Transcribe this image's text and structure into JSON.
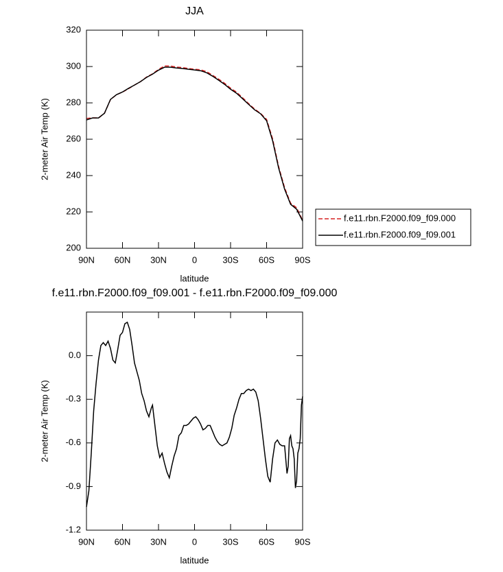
{
  "chart_data": [
    {
      "type": "line",
      "title": "JJA",
      "xlabel": "latitude",
      "ylabel": "2-meter Air Temp (K)",
      "x": [
        90,
        85,
        80,
        75,
        70,
        65,
        60,
        55,
        50,
        45,
        40,
        35,
        30,
        25,
        20,
        15,
        10,
        5,
        0,
        -5,
        -10,
        -15,
        -20,
        -25,
        -30,
        -35,
        -40,
        -45,
        -50,
        -55,
        -60,
        -65,
        -70,
        -75,
        -80,
        -85,
        -90
      ],
      "series": [
        {
          "name": "f.e11.rbn.F2000.f09_f09.000",
          "color": "#d62020",
          "style": "dashed",
          "values": [
            271.4,
            271.8,
            271.7,
            274.3,
            281.8,
            284.5,
            285.9,
            287.8,
            289.8,
            291.7,
            294.2,
            296,
            298.4,
            300.3,
            300.3,
            299.7,
            299.4,
            298.9,
            298.5,
            298.2,
            297.2,
            295.2,
            293.1,
            290.8,
            288.1,
            285.9,
            282.8,
            279.6,
            276.6,
            274.2,
            270.9,
            260.2,
            245,
            233.3,
            224.8,
            222.3,
            215.3
          ]
        },
        {
          "name": "f.e11.rbn.F2000.f09_f09.001",
          "color": "#000000",
          "style": "solid",
          "values": [
            270.6,
            271.7,
            271.7,
            274.3,
            281.9,
            284.5,
            286,
            288,
            289.8,
            291.7,
            294,
            295.8,
            298,
            299.6,
            299.6,
            299.2,
            298.9,
            298.5,
            298.1,
            297.7,
            296.6,
            294.7,
            292.5,
            290.2,
            287.5,
            285.3,
            282.3,
            279.2,
            276.2,
            274,
            270.2,
            259.2,
            244.2,
            232.5,
            224.2,
            221.5,
            215
          ]
        }
      ],
      "xlim": [
        90,
        -90
      ],
      "xticks": [
        {
          "value": 90,
          "label": "90N"
        },
        {
          "value": 60,
          "label": "60N"
        },
        {
          "value": 30,
          "label": "30N"
        },
        0,
        {
          "value": -30,
          "label": "30S"
        },
        {
          "value": -60,
          "label": "60S"
        },
        {
          "value": -90,
          "label": "90S"
        }
      ],
      "ylim": [
        200,
        320
      ],
      "yticks": [
        200,
        220,
        240,
        260,
        280,
        300,
        320
      ],
      "legend": "right"
    },
    {
      "type": "line",
      "title": "f.e11.rbn.F2000.f09_f09.001 - f.e11.rbn.F2000.f09_f09.000",
      "xlabel": "latitude",
      "ylabel": "2-meter Air Temp (K)",
      "x": [
        90,
        88,
        86,
        84,
        82,
        80,
        78,
        76,
        74,
        72,
        70,
        68,
        66,
        64,
        62,
        60,
        58,
        56,
        54,
        52,
        50,
        48,
        46,
        44,
        42,
        40,
        38,
        36,
        35,
        33,
        31,
        29,
        27,
        25,
        23,
        21,
        19,
        17,
        15,
        13,
        11,
        9,
        7,
        5,
        3,
        1,
        -1,
        -3,
        -5,
        -7,
        -9,
        -11,
        -13,
        -15,
        -17,
        -19,
        -21,
        -23,
        -25,
        -27,
        -29,
        -31,
        -33,
        -35,
        -37,
        -39,
        -41,
        -43,
        -45,
        -47,
        -49,
        -51,
        -53,
        -55,
        -57,
        -59,
        -61,
        -63,
        -65,
        -67,
        -69,
        -71,
        -73,
        -75,
        -77,
        -78,
        -79,
        -80,
        -81,
        -82,
        -83,
        -84,
        -85,
        -86,
        -87,
        -88,
        -89,
        -90
      ],
      "series": [
        {
          "color": "#000000",
          "style": "solid",
          "values": [
            -1.04,
            -0.93,
            -0.67,
            -0.38,
            -0.19,
            -0.03,
            0.07,
            0.09,
            0.07,
            0.1,
            0.05,
            -0.03,
            -0.05,
            0.04,
            0.14,
            0.16,
            0.22,
            0.23,
            0.18,
            0.07,
            -0.05,
            -0.11,
            -0.17,
            -0.26,
            -0.31,
            -0.38,
            -0.42,
            -0.36,
            -0.34,
            -0.48,
            -0.62,
            -0.7,
            -0.67,
            -0.74,
            -0.8,
            -0.84,
            -0.76,
            -0.69,
            -0.64,
            -0.55,
            -0.53,
            -0.48,
            -0.48,
            -0.47,
            -0.45,
            -0.43,
            -0.42,
            -0.44,
            -0.47,
            -0.51,
            -0.5,
            -0.48,
            -0.48,
            -0.52,
            -0.56,
            -0.59,
            -0.61,
            -0.62,
            -0.61,
            -0.6,
            -0.56,
            -0.5,
            -0.41,
            -0.36,
            -0.3,
            -0.26,
            -0.26,
            -0.24,
            -0.23,
            -0.24,
            -0.23,
            -0.25,
            -0.31,
            -0.43,
            -0.57,
            -0.71,
            -0.83,
            -0.87,
            -0.71,
            -0.6,
            -0.58,
            -0.61,
            -0.62,
            -0.62,
            -0.81,
            -0.76,
            -0.57,
            -0.55,
            -0.62,
            -0.64,
            -0.71,
            -0.91,
            -0.86,
            -0.67,
            -0.64,
            -0.57,
            -0.34,
            -0.28
          ]
        }
      ],
      "xlim": [
        90,
        -90
      ],
      "xticks": [
        {
          "value": 90,
          "label": "90N"
        },
        {
          "value": 60,
          "label": "60N"
        },
        {
          "value": 30,
          "label": "30N"
        },
        0,
        {
          "value": -30,
          "label": "30S"
        },
        {
          "value": -60,
          "label": "60S"
        },
        {
          "value": -90,
          "label": "90S"
        }
      ],
      "ylim": [
        -1.2,
        0.3
      ],
      "yticks": [
        -1.2,
        -0.9,
        -0.6,
        -0.3,
        {
          "value": 0,
          "label": "0.0"
        }
      ]
    }
  ]
}
